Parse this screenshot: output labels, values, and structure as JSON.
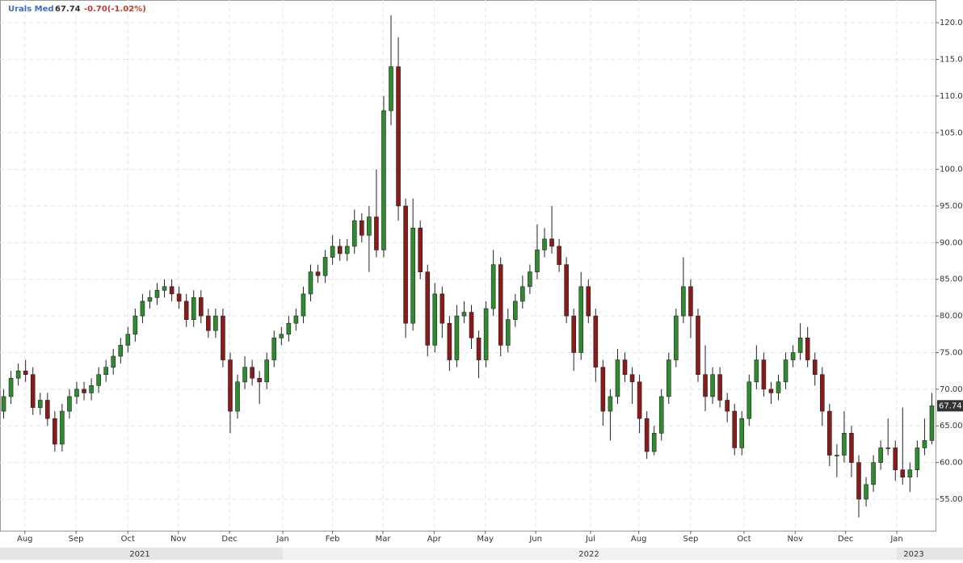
{
  "chart_data": {
    "type": "candlestick",
    "title": "Urals Med",
    "change": "-0.70(-1.02%)",
    "up_color": "#2e8b2e",
    "down_color": "#8b1a1a",
    "grid": true,
    "open": [
      67,
      69,
      71.5,
      72.5,
      72,
      67.5,
      68.5,
      66,
      62.5,
      67,
      69,
      70,
      69.5,
      70.5,
      72,
      73,
      74.5,
      76,
      77.5,
      80,
      82,
      82.5,
      83.5,
      84,
      83,
      82,
      79.5,
      82.5,
      80,
      78,
      80,
      74,
      67,
      71,
      73,
      71.5,
      71,
      74,
      77,
      77.5,
      79,
      80,
      83,
      86,
      85.5,
      88,
      89.5,
      88.5,
      89.5,
      93,
      91,
      93.5,
      89,
      108,
      114,
      95,
      79,
      92,
      86,
      76,
      83,
      79,
      74,
      80,
      80.5,
      77,
      74,
      81,
      87,
      76,
      79.5,
      82,
      84,
      86,
      89,
      90.5,
      89.5,
      87,
      80,
      75,
      84,
      80,
      73,
      67,
      69,
      74,
      72,
      71,
      66,
      61.5,
      64,
      69,
      74,
      80,
      84,
      80,
      72,
      69,
      72,
      68.5,
      67,
      62,
      66,
      71,
      74,
      70,
      69.5,
      71,
      74,
      75,
      77,
      74,
      72,
      67,
      61,
      61,
      64,
      60,
      55,
      57,
      60,
      62,
      62,
      59,
      58,
      59,
      62,
      63
    ],
    "high": [
      70,
      72.5,
      73.5,
      74,
      73,
      69.5,
      69.5,
      67,
      68,
      70,
      71,
      71,
      71.5,
      73,
      74,
      75.5,
      77,
      78.5,
      81,
      83,
      83.5,
      84.5,
      85,
      85,
      84,
      83,
      83.5,
      83.5,
      81,
      81,
      81,
      75,
      72,
      74.5,
      74,
      72.5,
      75,
      78,
      78.5,
      80,
      81,
      84,
      87,
      87,
      89,
      91,
      90.5,
      90.5,
      94.5,
      94,
      95,
      100,
      110,
      121,
      118,
      96,
      96,
      93,
      87,
      84.5,
      84,
      80,
      81.5,
      82,
      81.5,
      78,
      82,
      89,
      88,
      81,
      83,
      85.5,
      87,
      92.5,
      92,
      95,
      90.5,
      88,
      81,
      86,
      85,
      81,
      74,
      70,
      75.5,
      75,
      73,
      72,
      67,
      65,
      70,
      75,
      81,
      88,
      85,
      81,
      76,
      73,
      73,
      69.5,
      68,
      67,
      72,
      76,
      75,
      71,
      72,
      75,
      76,
      79,
      78.5,
      75,
      73,
      68,
      62.5,
      67,
      65,
      61,
      58,
      61,
      63,
      66,
      63,
      67.5,
      60,
      63,
      66,
      69.5
    ],
    "low": [
      66,
      68,
      70.5,
      71,
      66.5,
      66.5,
      65,
      61.5,
      61.5,
      66,
      68,
      68.5,
      68.5,
      69.5,
      71,
      72,
      73.5,
      75,
      76.5,
      79,
      81,
      81.5,
      82.5,
      82,
      81,
      78.5,
      78.5,
      79,
      77,
      77,
      73,
      64,
      66,
      70,
      70.5,
      68,
      70,
      73,
      76,
      76.5,
      78,
      79,
      82,
      84.5,
      84.5,
      87,
      87.5,
      87.5,
      88.5,
      90,
      86,
      88,
      88,
      106,
      93,
      77,
      78,
      85,
      74.5,
      75,
      77,
      72.5,
      73,
      79,
      75.5,
      71.5,
      73,
      80,
      74.5,
      75,
      78.5,
      81,
      83,
      85,
      88,
      88.5,
      86,
      79,
      72.5,
      74,
      79,
      71,
      65,
      63,
      68,
      71,
      68,
      64,
      60.5,
      61,
      63,
      68,
      73,
      79,
      77,
      71,
      67,
      68,
      67.5,
      65.5,
      61,
      61,
      65,
      70,
      69,
      68,
      68.5,
      70,
      73,
      74,
      73,
      70.5,
      65,
      59.5,
      58,
      60,
      58,
      52.5,
      54,
      56,
      59,
      61,
      57.5,
      57,
      56,
      58,
      61,
      62.5
    ],
    "close": [
      69,
      71.5,
      72.5,
      72,
      67.5,
      68.5,
      66,
      62.5,
      67,
      69,
      70,
      69.5,
      70.5,
      72,
      73,
      74.5,
      76,
      77.5,
      80,
      82,
      82.5,
      83.5,
      84,
      83,
      82,
      79.5,
      82.5,
      80,
      78,
      80,
      74,
      67,
      71,
      73,
      71.5,
      71,
      74,
      77,
      77.5,
      79,
      80,
      83,
      86,
      85.5,
      88,
      89.5,
      88.5,
      89.5,
      93,
      91,
      93.5,
      89,
      108,
      114,
      95,
      79,
      92,
      86,
      76,
      83,
      79,
      74,
      80,
      80.5,
      77,
      74,
      81,
      87,
      76,
      79.5,
      82,
      84,
      86,
      89,
      90.5,
      89.5,
      87,
      80,
      75,
      84,
      80,
      73,
      67,
      69,
      74,
      72,
      71,
      66,
      61.5,
      64,
      69,
      74,
      80,
      84,
      80,
      72,
      69,
      72,
      68.5,
      67,
      62,
      66,
      71,
      74,
      70,
      69.5,
      71,
      74,
      75,
      77,
      74,
      72,
      67,
      61,
      61,
      64,
      60,
      55,
      57,
      60,
      62,
      62,
      59,
      58,
      59,
      62,
      63,
      67.74
    ],
    "xlim": [
      0,
      128
    ],
    "xticks": [
      {
        "value": 3.4,
        "label": "Aug"
      },
      {
        "value": 10.4,
        "label": "Sep"
      },
      {
        "value": 17.5,
        "label": "Oct"
      },
      {
        "value": 24.4,
        "label": "Nov"
      },
      {
        "value": 31.4,
        "label": "Dec"
      },
      {
        "value": 38.7,
        "label": "Jan"
      },
      {
        "value": 45.5,
        "label": "Feb"
      },
      {
        "value": 52.4,
        "label": "Mar"
      },
      {
        "value": 59.4,
        "label": "Apr"
      },
      {
        "value": 66.4,
        "label": "May"
      },
      {
        "value": 73.3,
        "label": "Jun"
      },
      {
        "value": 80.8,
        "label": "Jul"
      },
      {
        "value": 87.4,
        "label": "Aug"
      },
      {
        "value": 94.5,
        "label": "Sep"
      },
      {
        "value": 101.8,
        "label": "Oct"
      },
      {
        "value": 108.8,
        "label": "Nov"
      },
      {
        "value": 115.7,
        "label": "Dec"
      },
      {
        "value": 122.7,
        "label": "Jan"
      }
    ],
    "years": [
      "2021",
      "2022",
      "2023"
    ],
    "ylim": [
      50.7,
      123.1
    ],
    "yticks": [
      {
        "value": 55,
        "label": "55.00"
      },
      {
        "value": 60,
        "label": "60.00"
      },
      {
        "value": 65,
        "label": "65.00"
      },
      {
        "value": 70,
        "label": "70.00"
      },
      {
        "value": 75,
        "label": "75.00"
      },
      {
        "value": 80,
        "label": "80.00"
      },
      {
        "value": 85,
        "label": "85.00"
      },
      {
        "value": 90,
        "label": "90.00"
      },
      {
        "value": 95,
        "label": "95.00"
      },
      {
        "value": 100,
        "label": "100.00"
      },
      {
        "value": 105,
        "label": "105.00"
      },
      {
        "value": 110,
        "label": "110.00"
      },
      {
        "value": 115,
        "label": "115.00"
      },
      {
        "value": 120,
        "label": "120.00"
      }
    ]
  }
}
